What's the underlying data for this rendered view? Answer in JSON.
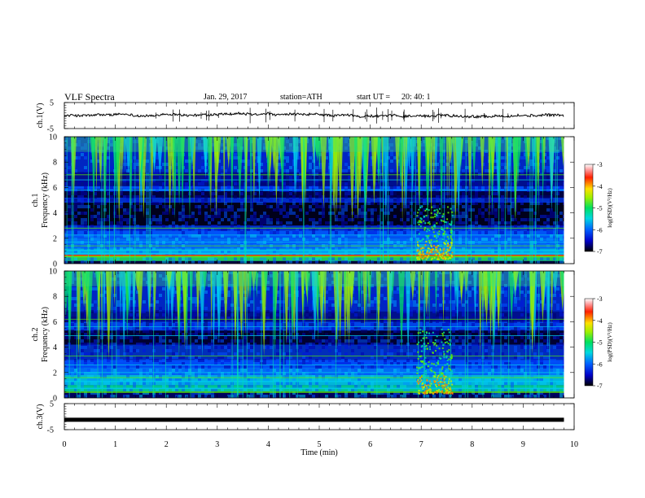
{
  "header": {
    "title": "VLF  Spectra",
    "date": "Jan. 29, 2017",
    "station": "station=ATH",
    "start_label": "start  UT  =",
    "start_time": "20: 40: 1"
  },
  "chart_data": [
    {
      "type": "line",
      "panel": "ch1-waveform",
      "ylabel": "ch.1(V)",
      "ylim": [
        -5,
        5
      ],
      "yticks": [
        "5",
        "-5"
      ],
      "xlim": [
        0,
        10
      ],
      "x_range_min": [
        0,
        9.8
      ],
      "y_level": 0,
      "color": "#000000"
    },
    {
      "type": "heatmap",
      "panel": "ch1-spectrogram",
      "ylabel": "ch.1\nFrequency  (kHz)",
      "ylabel_top": "ch.1",
      "ylabel_bottom": "Frequency  (kHz)",
      "ylim": [
        0,
        10
      ],
      "yticks": [
        "0",
        "2",
        "4",
        "6",
        "8",
        "10"
      ],
      "xlim": [
        0,
        10
      ],
      "x_range_min": [
        0,
        9.8
      ],
      "colorbar": {
        "label": "log(PSD)(V²/Hz)",
        "range": [
          -7,
          -3
        ],
        "ticks": [
          "-3",
          "-4",
          "-5",
          "-6",
          "-7"
        ]
      }
    },
    {
      "type": "heatmap",
      "panel": "ch2-spectrogram",
      "ylabel": "ch.2\nFrequency  (kHz)",
      "ylabel_top": "ch.2",
      "ylabel_bottom": "Frequency  (kHz)",
      "ylim": [
        0,
        10
      ],
      "yticks": [
        "0",
        "2",
        "4",
        "6",
        "8",
        "10"
      ],
      "xlim": [
        0,
        10
      ],
      "x_range_min": [
        0,
        9.8
      ],
      "colorbar": {
        "label": "log(PSD)(V²/Hz)",
        "range": [
          -7,
          -3
        ],
        "ticks": [
          "-3",
          "-4",
          "-5",
          "-6",
          "-7"
        ]
      }
    },
    {
      "type": "line",
      "panel": "ch3-waveform",
      "ylabel": "ch.3(V)",
      "ylim": [
        -5,
        5
      ],
      "yticks": [
        "5",
        "-5"
      ],
      "xlim": [
        0,
        10
      ],
      "x_range_min": [
        0,
        9.8
      ],
      "y_level": -1.2,
      "color": "#000000",
      "xlabel": "Time  (min)",
      "xticks": [
        "0",
        "1",
        "2",
        "3",
        "4",
        "5",
        "6",
        "7",
        "8",
        "9",
        "10"
      ]
    }
  ]
}
